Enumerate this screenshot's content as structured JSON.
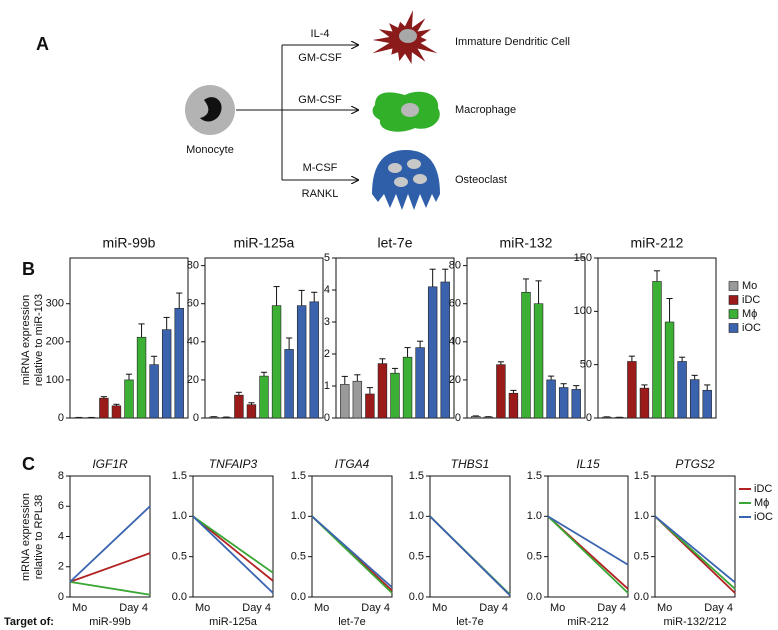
{
  "panel_labels": {
    "a": "A",
    "b": "B",
    "c": "C"
  },
  "diagram": {
    "source": "Monocyte",
    "branches": [
      {
        "signals": [
          "IL-4",
          "GM-CSF"
        ],
        "target": "Immature Dendritic Cell"
      },
      {
        "signals": [
          "GM-CSF"
        ],
        "target": "Macrophage"
      },
      {
        "signals": [
          "M-CSF",
          "RANKL"
        ],
        "target": "Osteoclast"
      }
    ]
  },
  "panel_b": {
    "y_label": [
      "miRNA expression",
      "relative to miR-103"
    ]
  },
  "panel_c": {
    "y_label": [
      "mRNA expression",
      "relative to RPL38"
    ],
    "target_label": "Target of:"
  },
  "chart_data": [
    {
      "type": "bar",
      "title": "miR-99b",
      "ylim": [
        0,
        420
      ],
      "yticks": [
        0,
        100,
        200,
        300
      ],
      "series": [
        {
          "name": "Mo",
          "color": "#9a9a9a",
          "values": [
            1,
            1
          ],
          "errors": [
            0.5,
            0.5
          ]
        },
        {
          "name": "iDC",
          "color": "#9b1b1b",
          "values": [
            52,
            32
          ],
          "errors": [
            4,
            4
          ]
        },
        {
          "name": "Mϕ",
          "color": "#3cb034",
          "values": [
            100,
            212
          ],
          "errors": [
            15,
            35
          ]
        },
        {
          "name": "iOC",
          "color": "#3a62ad",
          "values": [
            140,
            232,
            288
          ],
          "errors": [
            22,
            32,
            40
          ]
        }
      ]
    },
    {
      "type": "bar",
      "title": "miR-125a",
      "ylim": [
        0,
        84
      ],
      "yticks": [
        0,
        20,
        40,
        60,
        80
      ],
      "series": [
        {
          "name": "Mo",
          "color": "#9a9a9a",
          "values": [
            0.5,
            0.3
          ],
          "errors": [
            0.2,
            0.2
          ]
        },
        {
          "name": "iDC",
          "color": "#9b1b1b",
          "values": [
            12,
            7
          ],
          "errors": [
            1.5,
            1
          ]
        },
        {
          "name": "Mϕ",
          "color": "#3cb034",
          "values": [
            22,
            59
          ],
          "errors": [
            2,
            10
          ]
        },
        {
          "name": "iOC",
          "color": "#3a62ad",
          "values": [
            36,
            59,
            61
          ],
          "errors": [
            6,
            8,
            5
          ]
        }
      ]
    },
    {
      "type": "bar",
      "title": "let-7e",
      "ylim": [
        0,
        5
      ],
      "yticks": [
        0,
        1,
        2,
        3,
        4,
        5
      ],
      "series": [
        {
          "name": "Mo",
          "color": "#9a9a9a",
          "values": [
            1.05,
            1.15
          ],
          "errors": [
            0.25,
            0.2
          ]
        },
        {
          "name": "iDC",
          "color": "#9b1b1b",
          "values": [
            0.75,
            1.7
          ],
          "errors": [
            0.2,
            0.15
          ]
        },
        {
          "name": "Mϕ",
          "color": "#3cb034",
          "values": [
            1.4,
            1.9
          ],
          "errors": [
            0.15,
            0.3
          ]
        },
        {
          "name": "iOC",
          "color": "#3a62ad",
          "values": [
            2.2,
            4.1,
            4.25
          ],
          "errors": [
            0.2,
            0.55,
            0.4
          ]
        }
      ]
    },
    {
      "type": "bar",
      "title": "miR-132",
      "ylim": [
        0,
        84
      ],
      "yticks": [
        0,
        20,
        40,
        60,
        80
      ],
      "series": [
        {
          "name": "Mo",
          "color": "#9a9a9a",
          "values": [
            0.8,
            0.5
          ],
          "errors": [
            0.3,
            0.2
          ]
        },
        {
          "name": "iDC",
          "color": "#9b1b1b",
          "values": [
            28,
            13
          ],
          "errors": [
            1.5,
            1.5
          ]
        },
        {
          "name": "Mϕ",
          "color": "#3cb034",
          "values": [
            66,
            60
          ],
          "errors": [
            7,
            12
          ]
        },
        {
          "name": "iOC",
          "color": "#3a62ad",
          "values": [
            20,
            16,
            15
          ],
          "errors": [
            2,
            2,
            2
          ]
        }
      ]
    },
    {
      "type": "bar",
      "title": "miR-212",
      "ylim": [
        0,
        150
      ],
      "yticks": [
        0,
        50,
        100,
        150
      ],
      "series": [
        {
          "name": "Mo",
          "color": "#9a9a9a",
          "values": [
            0.8,
            0.5
          ],
          "errors": [
            0.3,
            0.2
          ]
        },
        {
          "name": "iDC",
          "color": "#9b1b1b",
          "values": [
            53,
            28
          ],
          "errors": [
            5,
            3
          ]
        },
        {
          "name": "Mϕ",
          "color": "#3cb034",
          "values": [
            128,
            90
          ],
          "errors": [
            10,
            22
          ]
        },
        {
          "name": "iOC",
          "color": "#3a62ad",
          "values": [
            53,
            36,
            26
          ],
          "errors": [
            4,
            4,
            5
          ]
        }
      ]
    },
    {
      "type": "line",
      "title": "IGF1R",
      "target": "miR-99b",
      "categories": [
        "Mo",
        "Day 4"
      ],
      "ylim": [
        0,
        8
      ],
      "yticks": [
        0,
        2,
        4,
        6,
        8
      ],
      "series": [
        {
          "name": "iDC",
          "color": "#b22222",
          "values": [
            1,
            2.9
          ]
        },
        {
          "name": "Mϕ",
          "color": "#3aa635",
          "values": [
            1,
            0.15
          ]
        },
        {
          "name": "iOC",
          "color": "#3a64b0",
          "values": [
            1,
            6
          ]
        }
      ]
    },
    {
      "type": "line",
      "title": "TNFAIP3",
      "target": "miR-125a",
      "categories": [
        "Mo",
        "Day 4"
      ],
      "ylim": [
        0,
        1.5
      ],
      "yticks": [
        {
          "value": 0,
          "label": "0.0"
        },
        {
          "value": 0.5,
          "label": "0.5"
        },
        {
          "value": 1,
          "label": "1.0"
        },
        {
          "value": 1.5,
          "label": "1.5"
        }
      ],
      "series": [
        {
          "name": "iDC",
          "color": "#b22222",
          "values": [
            1,
            0.2
          ]
        },
        {
          "name": "Mϕ",
          "color": "#3aa635",
          "values": [
            1,
            0.3
          ]
        },
        {
          "name": "iOC",
          "color": "#3a64b0",
          "values": [
            1,
            0.05
          ]
        }
      ]
    },
    {
      "type": "line",
      "title": "ITGA4",
      "target": "let-7e",
      "categories": [
        "Mo",
        "Day 4"
      ],
      "ylim": [
        0,
        1.5
      ],
      "yticks": [
        {
          "value": 0,
          "label": "0.0"
        },
        {
          "value": 0.5,
          "label": "0.5"
        },
        {
          "value": 1,
          "label": "1.0"
        },
        {
          "value": 1.5,
          "label": "1.5"
        }
      ],
      "series": [
        {
          "name": "iDC",
          "color": "#b22222",
          "values": [
            1,
            0.08
          ]
        },
        {
          "name": "Mϕ",
          "color": "#3aa635",
          "values": [
            1,
            0.05
          ]
        },
        {
          "name": "iOC",
          "color": "#3a64b0",
          "values": [
            1,
            0.12
          ]
        }
      ]
    },
    {
      "type": "line",
      "title": "THBS1",
      "target": "let-7e",
      "categories": [
        "Mo",
        "Day 4"
      ],
      "ylim": [
        0,
        1.5
      ],
      "yticks": [
        {
          "value": 0,
          "label": "0.0"
        },
        {
          "value": 0.5,
          "label": "0.5"
        },
        {
          "value": 1,
          "label": "1.0"
        },
        {
          "value": 1.5,
          "label": "1.5"
        }
      ],
      "series": [
        {
          "name": "iDC",
          "color": "#b22222",
          "values": [
            1,
            0.02
          ]
        },
        {
          "name": "Mϕ",
          "color": "#3aa635",
          "values": [
            1,
            0.03
          ]
        },
        {
          "name": "iOC",
          "color": "#3a64b0",
          "values": [
            1,
            0.02
          ]
        }
      ]
    },
    {
      "type": "line",
      "title": "IL15",
      "target": "miR-212",
      "categories": [
        "Mo",
        "Day 4"
      ],
      "ylim": [
        0,
        1.5
      ],
      "yticks": [
        {
          "value": 0,
          "label": "0.0"
        },
        {
          "value": 0.5,
          "label": "0.5"
        },
        {
          "value": 1,
          "label": "1.0"
        },
        {
          "value": 1.5,
          "label": "1.5"
        }
      ],
      "series": [
        {
          "name": "iDC",
          "color": "#b22222",
          "values": [
            1,
            0.1
          ]
        },
        {
          "name": "Mϕ",
          "color": "#3aa635",
          "values": [
            1,
            0.05
          ]
        },
        {
          "name": "iOC",
          "color": "#3a64b0",
          "values": [
            1,
            0.4
          ]
        }
      ]
    },
    {
      "type": "line",
      "title": "PTGS2",
      "target": "miR-132/212",
      "categories": [
        "Mo",
        "Day 4"
      ],
      "ylim": [
        0,
        1.5
      ],
      "yticks": [
        {
          "value": 0,
          "label": "0.0"
        },
        {
          "value": 0.5,
          "label": "0.5"
        },
        {
          "value": 1,
          "label": "1.0"
        },
        {
          "value": 1.5,
          "label": "1.5"
        }
      ],
      "series": [
        {
          "name": "iDC",
          "color": "#b22222",
          "values": [
            1,
            0.05
          ]
        },
        {
          "name": "Mϕ",
          "color": "#3aa635",
          "values": [
            1,
            0.1
          ]
        },
        {
          "name": "iOC",
          "color": "#3a64b0",
          "values": [
            1,
            0.18
          ]
        }
      ]
    }
  ]
}
